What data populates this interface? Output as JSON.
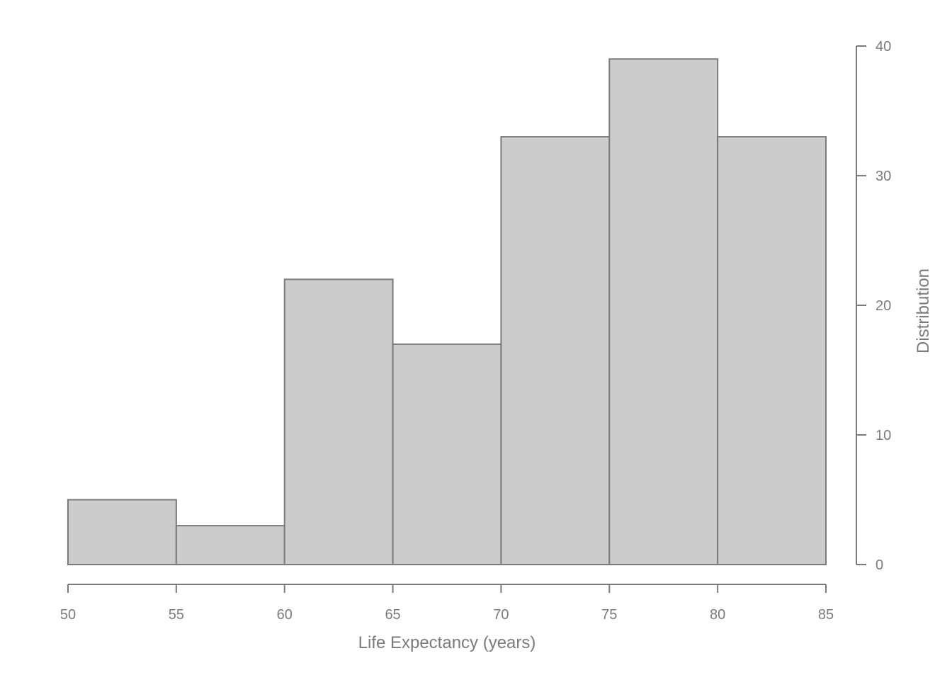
{
  "chart_data": {
    "type": "bar",
    "bins": [
      {
        "start": 50,
        "end": 55,
        "count": 5
      },
      {
        "start": 55,
        "end": 60,
        "count": 3
      },
      {
        "start": 60,
        "end": 65,
        "count": 22
      },
      {
        "start": 65,
        "end": 70,
        "count": 17
      },
      {
        "start": 70,
        "end": 75,
        "count": 33
      },
      {
        "start": 75,
        "end": 80,
        "count": 39
      },
      {
        "start": 80,
        "end": 85,
        "count": 33
      }
    ],
    "x_ticks": [
      "50",
      "55",
      "60",
      "65",
      "70",
      "75",
      "80",
      "85"
    ],
    "y_ticks": [
      "0",
      "10",
      "20",
      "30",
      "40"
    ],
    "xlim": [
      50,
      85
    ],
    "ylim": [
      0,
      40
    ],
    "xlabel": "Life Expectancy (years)",
    "ylabel": "Distribution",
    "y_axis_side": "right",
    "grid": false,
    "colors": {
      "bar_fill": "#cccccc",
      "bar_stroke": "#7a7a7a",
      "axis": "#7a7a7a",
      "text": "#7a7a7a"
    }
  }
}
